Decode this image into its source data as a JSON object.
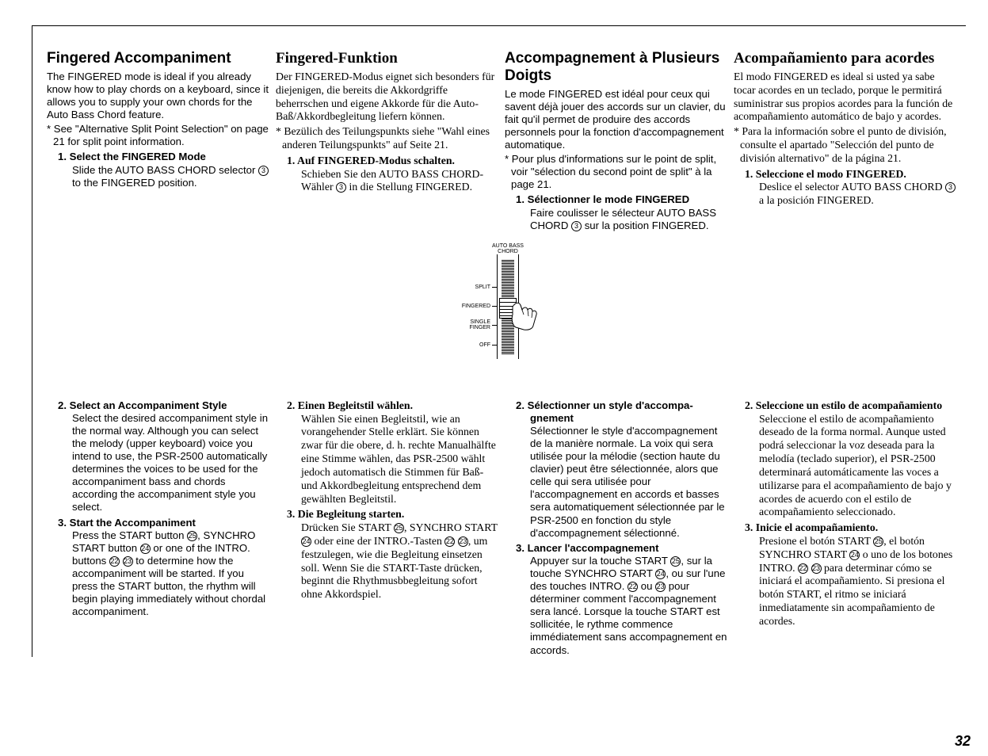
{
  "page_number": "32",
  "diagram": {
    "title_line1": "AUTO BASS",
    "title_line2": "CHORD",
    "labels": [
      "SPLIT",
      "FINGERED",
      "SINGLE\nFINGER",
      "OFF"
    ]
  },
  "en": {
    "title": "Fingered Accompaniment",
    "intro": "The FINGERED mode is ideal if you already know how to play chords on a keyboard, since it allows you to supply your own chords for the Auto Bass Chord feature.",
    "note": "* See \"Alternative Split Point Selection\" on page 21 for split point information.",
    "step1_head": "1. Select the FINGERED Mode",
    "step1_body": "Slide the AUTO BASS CHORD selector ③ to the FINGERED position.",
    "step2_head": "2. Select an Accompaniment Style",
    "step2_body": "Select the desired accompaniment style in the normal way. Although you can select the melody (upper keyboard) voice you intend to use, the PSR-2500 automatically determines the voices to be used for the accompaniment bass and chords according the accompaniment style you select.",
    "step3_head": "3. Start the Accompaniment",
    "step3_body": "Press the START button ㉕, SYNCHRO START button ㉔ or one of the INTRO. buttons ㉒ ㉓ to determine how the accompaniment will be started. If you press the START button, the rhythm will begin playing immediately without chordal accompaniment."
  },
  "de": {
    "title": "Fingered-Funktion",
    "intro": "Der FINGERED-Modus eignet sich besonders für diejenigen, die bereits die Akkordgriffe beherrschen und eigene Akkorde für die Auto-Baß/Akkordbegleitung liefern können.",
    "note": "* Bezülich des Teilungspunkts siehe \"Wahl eines anderen Teilungspunkts\" auf Seite 21.",
    "step1_head": "1. Auf FINGERED-Modus schalten.",
    "step1_body": "Schieben Sie den AUTO BASS CHORD-Wähler ③ in die Stellung FINGERED.",
    "step2_head": "2. Einen Begleitstil wählen.",
    "step2_body": "Wählen Sie einen Begleitstil, wie an vorangehender Stelle erklärt. Sie können zwar für die obere, d. h. rechte Manualhälfte eine Stimme wählen, das PSR-2500 wählt jedoch automatisch die Stimmen für Baß- und Akkordbegleitung entsprechend dem gewählten Begleitstil.",
    "step3_head": "3. Die Begleitung starten.",
    "step3_body": "Drücken Sie START ㉕, SYNCHRO START ㉔ oder eine der INTRO.-Tasten ㉒ ㉓, um festzulegen, wie die Begleitung einsetzen soll. Wenn Sie die START-Taste drücken, beginnt die Rhythmusbbegleitung sofort ohne Akkordspiel."
  },
  "fr": {
    "title": "Accompagnement à Plusieurs Doigts",
    "intro": "Le mode FINGERED est idéal pour ceux qui savent déjà jouer des accords sur un clavier, du fait qu'il permet de produire des accords personnels pour la fonction d'accompagnement automatique.",
    "note": "* Pour plus d'informations sur le point de split, voir \"sélection du second point de split\" à la page 21.",
    "step1_head": "1. Sélectionner le mode FINGERED",
    "step1_body": "Faire coulisser le sélecteur AUTO BASS CHORD ③ sur la position FINGERED.",
    "step2_head": "2. Sélectionner un style d'accompa­gnement",
    "step2_body": "Sélectionner le style d'accompa­gnement de la manière normale. La voix qui sera utilisée pour la mélodie (section haute du clavier) peut être sélectionnée, alors que celle qui sera utilisée pour l'accompagnement en accords et basses sera automatiquement sélectionnée par le PSR-2500 en fonction du style d'accompagnement sélectionné.",
    "step3_head": "3. Lancer l'accompagnement",
    "step3_body": "Appuyer sur la touche START ㉕, sur la touche SYNCHRO START ㉔, ou sur l'une des touches INTRO. ㉒ ou ㉓ pour déterminer comment l'accompagnement sera lancé. Lorsque la touche START est sollicitée, le rythme commence immédiatement sans accompagnement en accords."
  },
  "es": {
    "title": "Acompañamiento para acordes",
    "intro": "El modo FINGERED es ideal si usted ya sabe tocar acordes en un teclado, porque le permitirá suministrar sus propios acordes para la función de acompañamiento automático de bajo y acordes.",
    "note": "* Para la información sobre el punto de división, consulte el apartado \"Selección del punto de división alternativo\" de la página 21.",
    "step1_head": "1. Seleccione el modo FINGERED.",
    "step1_body": "Deslice el selector AUTO BASS CHORD ③ a la posición FINGERED.",
    "step2_head": "2. Seleccione un estilo de acompañamiento",
    "step2_body": "Seleccione el estilo de acompañamiento deseado de la forma normal. Aunque usted podrá seleccionar la voz deseada para la melodía (teclado superior), el PSR-2500 determinará automáticamente las voces a utilizarse para el acompañamiento de bajo y acordes de acuerdo con el estilo de acompañamiento seleccionado.",
    "step3_head": "3. Inicie el acompañamiento.",
    "step3_body": "Presione el botón START ㉕, el botón SYNCHRO START ㉔ o uno de los botones INTRO. ㉒ ㉓ para determinar cómo se iniciará el acompañamiento. Si presiona el botón START, el ritmo se iniciará inmediatamente sin acompañamiento de acordes."
  }
}
